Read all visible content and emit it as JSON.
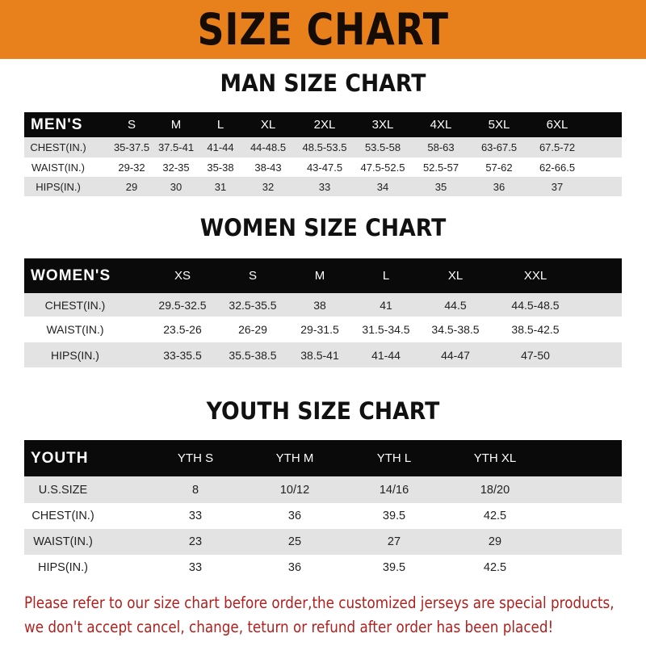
{
  "banner": {
    "title": "SIZE CHART",
    "color": "#e8801b"
  },
  "men": {
    "title": "MAN SIZE CHART",
    "header": [
      "MEN'S",
      "S",
      "M",
      "L",
      "XL",
      "2XL",
      "3XL",
      "4XL",
      "5XL",
      "6XL"
    ],
    "rows": [
      [
        "CHEST(IN.)",
        "35-37.5",
        "37.5-41",
        "41-44",
        "44-48.5",
        "48.5-53.5",
        "53.5-58",
        "58-63",
        "63-67.5",
        "67.5-72"
      ],
      [
        "WAIST(IN.)",
        "29-32",
        "32-35",
        "35-38",
        "38-43",
        "43-47.5",
        "47.5-52.5",
        "52.5-57",
        "57-62",
        "62-66.5"
      ],
      [
        "HIPS(IN.)",
        "29",
        "30",
        "31",
        "32",
        "33",
        "34",
        "35",
        "36",
        "37"
      ]
    ]
  },
  "women": {
    "title": "WOMEN SIZE CHART",
    "header": [
      "WOMEN'S",
      "XS",
      "S",
      "M",
      "L",
      "XL",
      "XXL"
    ],
    "rows": [
      [
        "CHEST(IN.)",
        "29.5-32.5",
        "32.5-35.5",
        "38",
        "41",
        "44.5",
        "44.5-48.5"
      ],
      [
        "WAIST(IN.)",
        "23.5-26",
        "26-29",
        "29-31.5",
        "31.5-34.5",
        "34.5-38.5",
        "38.5-42.5"
      ],
      [
        "HIPS(IN.)",
        "33-35.5",
        "35.5-38.5",
        "38.5-41",
        "41-44",
        "44-47",
        "47-50"
      ]
    ]
  },
  "youth": {
    "title": "YOUTH SIZE CHART",
    "header": [
      "YOUTH",
      "YTH S",
      "YTH M",
      "YTH L",
      "YTH XL"
    ],
    "rows": [
      [
        "U.S.SIZE",
        "8",
        "10/12",
        "14/16",
        "18/20"
      ],
      [
        "CHEST(IN.)",
        "33",
        "36",
        "39.5",
        "42.5"
      ],
      [
        "WAIST(IN.)",
        "23",
        "25",
        "27",
        "29"
      ],
      [
        "HIPS(IN.)",
        "33",
        "36",
        "39.5",
        "42.5"
      ]
    ]
  },
  "notice": {
    "line1": "Please refer to our size chart before order,the customized jerseys are special products,",
    "line2": "we don't accept cancel, change, teturn or refund after order has been placed!",
    "color": "#b0201e"
  }
}
